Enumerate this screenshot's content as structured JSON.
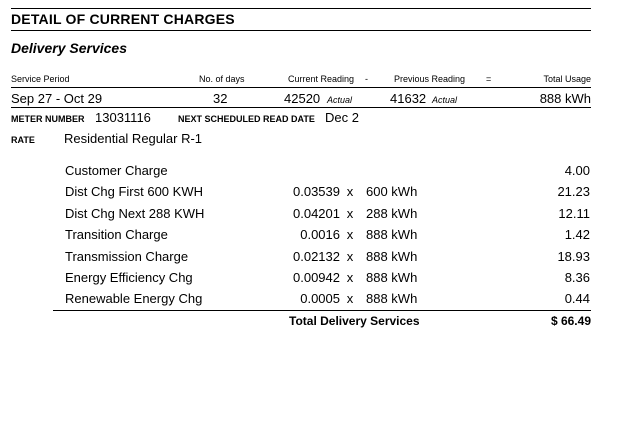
{
  "title": "DETAIL OF CURRENT CHARGES",
  "section": "Delivery Services",
  "headers": {
    "service_period": "Service Period",
    "days": "No. of days",
    "current_reading": "Current Reading",
    "minus": "-",
    "previous_reading": "Previous Reading",
    "equals": "=",
    "total_usage": "Total Usage"
  },
  "reading": {
    "period": "Sep 27 - Oct 29",
    "days": "32",
    "current": "42520",
    "current_note": "Actual",
    "previous": "41632",
    "previous_note": "Actual",
    "usage": "888 kWh"
  },
  "meter": {
    "label": "METER NUMBER",
    "number": "13031116",
    "next_label": "NEXT SCHEDULED READ DATE",
    "next_date": "Dec 2"
  },
  "rate": {
    "label": "RATE",
    "value": "Residential Regular R-1"
  },
  "charges": [
    {
      "name": "Customer Charge",
      "rate": "",
      "x": "",
      "qty": "",
      "amount": "4.00"
    },
    {
      "name": "Dist Chg First 600 KWH",
      "rate": "0.03539",
      "x": "x",
      "qty": "600 kWh",
      "amount": "21.23"
    },
    {
      "name": "Dist Chg Next 288 KWH",
      "rate": "0.04201",
      "x": "x",
      "qty": "288 kWh",
      "amount": "12.11"
    },
    {
      "name": "Transition Charge",
      "rate": "0.0016",
      "x": "x",
      "qty": "888 kWh",
      "amount": "1.42"
    },
    {
      "name": "Transmission Charge",
      "rate": "0.02132",
      "x": "x",
      "qty": "888 kWh",
      "amount": "18.93"
    },
    {
      "name": "Energy Efficiency Chg",
      "rate": "0.00942",
      "x": "x",
      "qty": "888 kWh",
      "amount": "8.36"
    },
    {
      "name": "Renewable Energy Chg",
      "rate": "0.0005",
      "x": "x",
      "qty": "888 kWh",
      "amount": "0.44"
    }
  ],
  "total": {
    "label": "Total Delivery Services",
    "amount": "$ 66.49"
  }
}
